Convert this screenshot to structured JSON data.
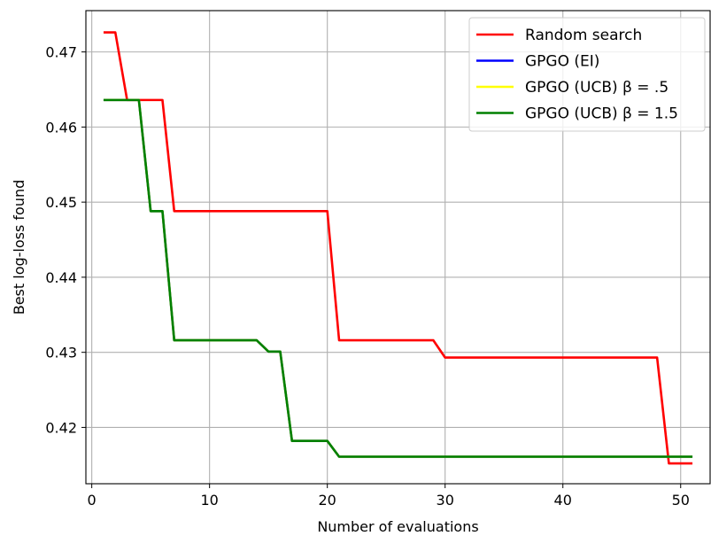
{
  "chart_data": {
    "type": "line",
    "xlabel": "Number of evaluations",
    "ylabel": "Best log-loss found",
    "xlim": [
      -0.5,
      52.5
    ],
    "ylim": [
      0.4125,
      0.4755
    ],
    "xticks": [
      0,
      10,
      20,
      30,
      40,
      50
    ],
    "xtick_labels": [
      "0",
      "10",
      "20",
      "30",
      "40",
      "50"
    ],
    "yticks": [
      0.42,
      0.43,
      0.44,
      0.45,
      0.46,
      0.47
    ],
    "ytick_labels": [
      "0.42",
      "0.43",
      "0.44",
      "0.45",
      "0.46",
      "0.47"
    ],
    "grid": true,
    "legend_position": "top-right",
    "series": [
      {
        "name": "Random search",
        "color": "#ff0000",
        "x": [
          1,
          2,
          3,
          4,
          5,
          6,
          7,
          8,
          9,
          10,
          11,
          12,
          13,
          14,
          15,
          16,
          17,
          18,
          19,
          20,
          21,
          22,
          23,
          24,
          25,
          26,
          27,
          28,
          29,
          30,
          31,
          32,
          33,
          34,
          35,
          36,
          37,
          38,
          39,
          40,
          41,
          42,
          43,
          44,
          45,
          46,
          47,
          48,
          49,
          50,
          51
        ],
        "y": [
          0.4726,
          0.4726,
          0.4636,
          0.4636,
          0.4636,
          0.4636,
          0.4488,
          0.4488,
          0.4488,
          0.4488,
          0.4488,
          0.4488,
          0.4488,
          0.4488,
          0.4488,
          0.4488,
          0.4488,
          0.4488,
          0.4488,
          0.4488,
          0.4316,
          0.4316,
          0.4316,
          0.4316,
          0.4316,
          0.4316,
          0.4316,
          0.4316,
          0.4316,
          0.4293,
          0.4293,
          0.4293,
          0.4293,
          0.4293,
          0.4293,
          0.4293,
          0.4293,
          0.4293,
          0.4293,
          0.4293,
          0.4293,
          0.4293,
          0.4293,
          0.4293,
          0.4293,
          0.4293,
          0.4293,
          0.4293,
          0.4152,
          0.4152,
          0.4152
        ]
      },
      {
        "name": "GPGO (EI)",
        "color": "#0000ff",
        "x": [
          1,
          2,
          3,
          4,
          5,
          6,
          7,
          8,
          9,
          10,
          11,
          12,
          13,
          14,
          15,
          16,
          17,
          18,
          19,
          20,
          21,
          22,
          23,
          24,
          25,
          26,
          27,
          28,
          29,
          30,
          31,
          32,
          33,
          34,
          35,
          36,
          37,
          38,
          39,
          40,
          41,
          42,
          43,
          44,
          45,
          46,
          47,
          48,
          49,
          50,
          51
        ],
        "y": [
          0.4636,
          0.4636,
          0.4636,
          0.4636,
          0.4488,
          0.4488,
          0.4316,
          0.4316,
          0.4316,
          0.4316,
          0.4316,
          0.4316,
          0.4316,
          0.4316,
          0.4301,
          0.4301,
          0.4182,
          0.4182,
          0.4182,
          0.4182,
          0.4161,
          0.4161,
          0.4161,
          0.4161,
          0.4161,
          0.4161,
          0.4161,
          0.4161,
          0.4161,
          0.4161,
          0.4161,
          0.4161,
          0.4161,
          0.4161,
          0.4161,
          0.4161,
          0.4161,
          0.4161,
          0.4161,
          0.4161,
          0.4161,
          0.4161,
          0.4161,
          0.4161,
          0.4161,
          0.4161,
          0.4161,
          0.4161,
          0.4161,
          0.4161,
          0.4161
        ]
      },
      {
        "name": "GPGO (UCB) β = .5",
        "color": "#ffff00",
        "x": [
          1,
          2,
          3,
          4,
          5,
          6,
          7,
          8,
          9,
          10,
          11,
          12,
          13,
          14,
          15,
          16,
          17,
          18,
          19,
          20,
          21,
          22,
          23,
          24,
          25,
          26,
          27,
          28,
          29,
          30,
          31,
          32,
          33,
          34,
          35,
          36,
          37,
          38,
          39,
          40,
          41,
          42,
          43,
          44,
          45,
          46,
          47,
          48,
          49,
          50,
          51
        ],
        "y": [
          0.4636,
          0.4636,
          0.4636,
          0.4636,
          0.4488,
          0.4488,
          0.4316,
          0.4316,
          0.4316,
          0.4316,
          0.4316,
          0.4316,
          0.4316,
          0.4316,
          0.4301,
          0.4301,
          0.4182,
          0.4182,
          0.4182,
          0.4182,
          0.4161,
          0.4161,
          0.4161,
          0.4161,
          0.4161,
          0.4161,
          0.4161,
          0.4161,
          0.4161,
          0.4161,
          0.4161,
          0.4161,
          0.4161,
          0.4161,
          0.4161,
          0.4161,
          0.4161,
          0.4161,
          0.4161,
          0.4161,
          0.4161,
          0.4161,
          0.4161,
          0.4161,
          0.4161,
          0.4161,
          0.4161,
          0.4161,
          0.4161,
          0.4161,
          0.4161
        ]
      },
      {
        "name": "GPGO (UCB) β = 1.5",
        "color": "#008000",
        "x": [
          1,
          2,
          3,
          4,
          5,
          6,
          7,
          8,
          9,
          10,
          11,
          12,
          13,
          14,
          15,
          16,
          17,
          18,
          19,
          20,
          21,
          22,
          23,
          24,
          25,
          26,
          27,
          28,
          29,
          30,
          31,
          32,
          33,
          34,
          35,
          36,
          37,
          38,
          39,
          40,
          41,
          42,
          43,
          44,
          45,
          46,
          47,
          48,
          49,
          50,
          51
        ],
        "y": [
          0.4636,
          0.4636,
          0.4636,
          0.4636,
          0.4488,
          0.4488,
          0.4316,
          0.4316,
          0.4316,
          0.4316,
          0.4316,
          0.4316,
          0.4316,
          0.4316,
          0.4301,
          0.4301,
          0.4182,
          0.4182,
          0.4182,
          0.4182,
          0.4161,
          0.4161,
          0.4161,
          0.4161,
          0.4161,
          0.4161,
          0.4161,
          0.4161,
          0.4161,
          0.4161,
          0.4161,
          0.4161,
          0.4161,
          0.4161,
          0.4161,
          0.4161,
          0.4161,
          0.4161,
          0.4161,
          0.4161,
          0.4161,
          0.4161,
          0.4161,
          0.4161,
          0.4161,
          0.4161,
          0.4161,
          0.4161,
          0.4161,
          0.4161,
          0.4161
        ]
      }
    ],
    "legend": [
      {
        "label": "Random search",
        "color": "#ff0000"
      },
      {
        "label": "GPGO (EI)",
        "color": "#0000ff"
      },
      {
        "label": "GPGO (UCB) β = .5",
        "color": "#ffff00"
      },
      {
        "label": "GPGO (UCB) β = 1.5",
        "color": "#008000"
      }
    ]
  }
}
